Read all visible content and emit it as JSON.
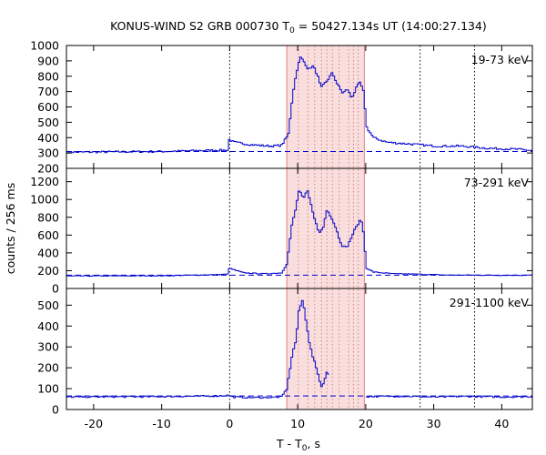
{
  "title": {
    "prefix": "KONUS-WIND S2 GRB 000730 T",
    "sub": "0",
    "suffix": " = 50427.134s UT (14:00:27.134)"
  },
  "axes": {
    "xlabel_prefix": "T - T",
    "xlabel_sub": "0",
    "xlabel_suffix": ", s",
    "ylabel": "counts / 256 ms"
  },
  "colors": {
    "series": "#0000cc",
    "shade": "#f9dede",
    "shade_edge": "#e08080",
    "vline": "#000000",
    "frame": "#000000"
  },
  "chart_data": {
    "type": "line",
    "subtype": "step-histogram",
    "xlim": [
      -24,
      44.5
    ],
    "x_ticks": [
      -20,
      -10,
      0,
      10,
      20,
      30,
      40
    ],
    "bin_width_s": 0.256,
    "shaded_interval": [
      8.4,
      19.8
    ],
    "interval_lines_inside": [
      10.1,
      11.5,
      12.5,
      13.5,
      14.3,
      15.1,
      16.1,
      17.5,
      18.2,
      18.9
    ],
    "marker_lines": [
      0,
      28,
      36
    ],
    "panels": [
      {
        "id": "p1",
        "band": "19-73 keV",
        "ylim": [
          200,
          1000
        ],
        "y_ticks": [
          200,
          300,
          400,
          500,
          600,
          700,
          800,
          900,
          1000
        ],
        "background": 310,
        "points": [
          [
            -24,
            305
          ],
          [
            -10,
            310
          ],
          [
            -2,
            318
          ],
          [
            -0.3,
            318
          ],
          [
            -0.3,
            390
          ],
          [
            0.5,
            370
          ],
          [
            2,
            360
          ],
          [
            4,
            350
          ],
          [
            6,
            345
          ],
          [
            7.5,
            350
          ],
          [
            8.5,
            420
          ],
          [
            9.2,
            700
          ],
          [
            9.8,
            850
          ],
          [
            10.3,
            920
          ],
          [
            11,
            885
          ],
          [
            11.5,
            840
          ],
          [
            12,
            870
          ],
          [
            12.7,
            820
          ],
          [
            13.3,
            720
          ],
          [
            14,
            760
          ],
          [
            15,
            820
          ],
          [
            15.8,
            740
          ],
          [
            16.5,
            690
          ],
          [
            17.2,
            715
          ],
          [
            17.8,
            660
          ],
          [
            18.5,
            720
          ],
          [
            19,
            760
          ],
          [
            19.6,
            690
          ],
          [
            20,
            470
          ],
          [
            21,
            400
          ],
          [
            23,
            370
          ],
          [
            26,
            360
          ],
          [
            30,
            345
          ],
          [
            34,
            345
          ],
          [
            38,
            330
          ],
          [
            42,
            325
          ],
          [
            44.5,
            315
          ]
        ]
      },
      {
        "id": "p2",
        "band": "73-291 keV",
        "ylim": [
          0,
          1350
        ],
        "y_ticks": [
          0,
          200,
          400,
          600,
          800,
          1000,
          1200
        ],
        "background": 150,
        "points": [
          [
            -24,
            140
          ],
          [
            -10,
            143
          ],
          [
            -2,
            155
          ],
          [
            -0.3,
            160
          ],
          [
            -0.3,
            230
          ],
          [
            0.5,
            210
          ],
          [
            2,
            175
          ],
          [
            5,
            165
          ],
          [
            7.5,
            175
          ],
          [
            8.3,
            280
          ],
          [
            9,
            700
          ],
          [
            9.6,
            900
          ],
          [
            10.1,
            1120
          ],
          [
            10.7,
            1000
          ],
          [
            11.3,
            1100
          ],
          [
            11.8,
            950
          ],
          [
            12.4,
            780
          ],
          [
            13,
            620
          ],
          [
            13.6,
            680
          ],
          [
            14.2,
            900
          ],
          [
            14.8,
            800
          ],
          [
            15.4,
            700
          ],
          [
            15.9,
            580
          ],
          [
            16.4,
            480
          ],
          [
            17.1,
            460
          ],
          [
            17.7,
            560
          ],
          [
            18.2,
            650
          ],
          [
            18.7,
            720
          ],
          [
            19.2,
            780
          ],
          [
            19.5,
            650
          ],
          [
            20,
            230
          ],
          [
            21,
            185
          ],
          [
            24,
            165
          ],
          [
            28,
            160
          ],
          [
            32,
            150
          ],
          [
            36,
            150
          ],
          [
            40,
            148
          ],
          [
            44.5,
            150
          ]
        ]
      },
      {
        "id": "p3",
        "band": "291-1100 keV",
        "ylim": [
          0,
          580
        ],
        "y_ticks": [
          0,
          100,
          200,
          300,
          400,
          500
        ],
        "background": 65,
        "points": [
          [
            -24,
            60
          ],
          [
            -10,
            62
          ],
          [
            -2,
            65
          ],
          [
            -0.3,
            68
          ],
          [
            0.3,
            60
          ],
          [
            3,
            57
          ],
          [
            6,
            58
          ],
          [
            7.5,
            60
          ],
          [
            8.3,
            100
          ],
          [
            9,
            250
          ],
          [
            9.6,
            330
          ],
          [
            10.1,
            480
          ],
          [
            10.6,
            525
          ],
          [
            11.1,
            430
          ],
          [
            11.7,
            300
          ],
          [
            12.3,
            230
          ],
          [
            12.9,
            170
          ],
          [
            13.3,
            105
          ],
          [
            13.8,
            140
          ],
          [
            14.2,
            180
          ],
          [
            14.6,
            160
          ]
        ],
        "points_tail": [
          [
            20,
            62
          ],
          [
            25,
            64
          ],
          [
            30,
            60
          ],
          [
            35,
            63
          ],
          [
            40,
            60
          ],
          [
            44.5,
            62
          ]
        ]
      }
    ]
  }
}
